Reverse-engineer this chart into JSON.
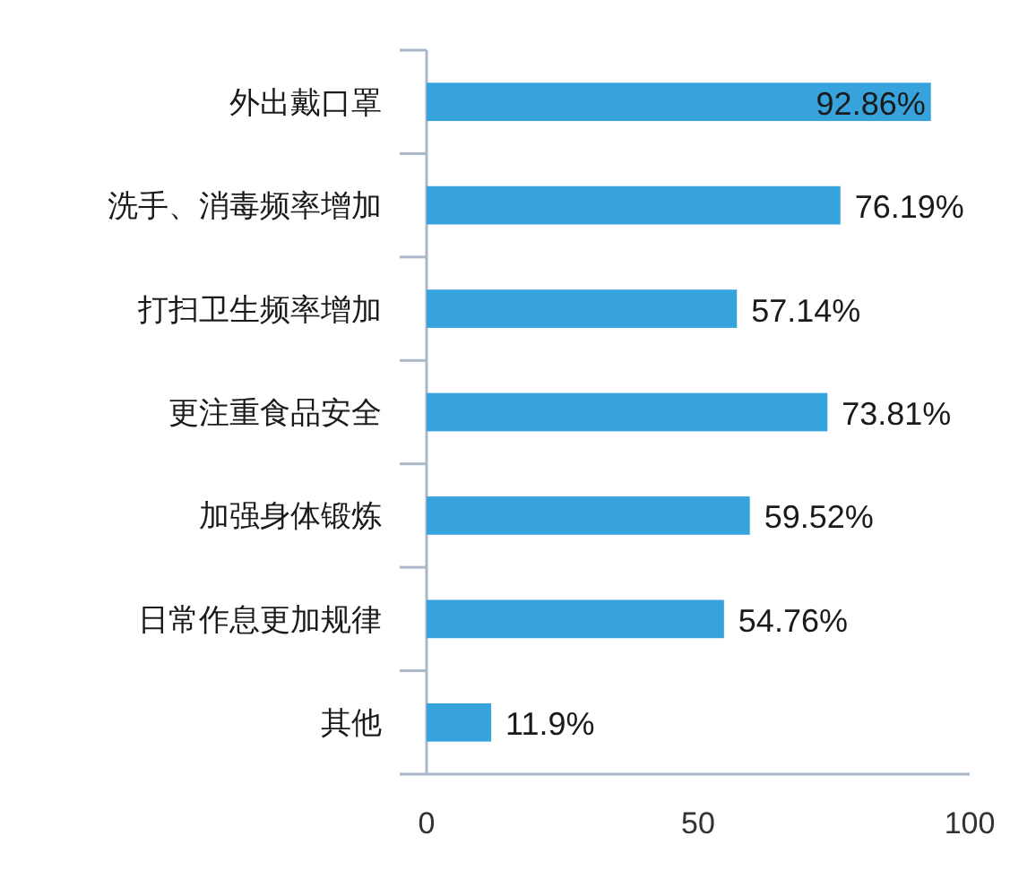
{
  "chart_data": {
    "type": "bar",
    "orientation": "horizontal",
    "categories": [
      "外出戴口罩",
      "洗手、消毒频率增加",
      "打扫卫生频率增加",
      "更注重食品安全",
      "加强身体锻炼",
      "日常作息更加规律",
      "其他"
    ],
    "values": [
      92.86,
      76.19,
      57.14,
      73.81,
      59.52,
      54.76,
      11.9
    ],
    "value_labels": [
      "92.86%",
      "76.19%",
      "57.14%",
      "73.81%",
      "59.52%",
      "54.76%",
      "11.9%"
    ],
    "color": "#36a3dc",
    "xlim": [
      0,
      100
    ],
    "xticks": [
      0,
      50,
      100
    ]
  }
}
